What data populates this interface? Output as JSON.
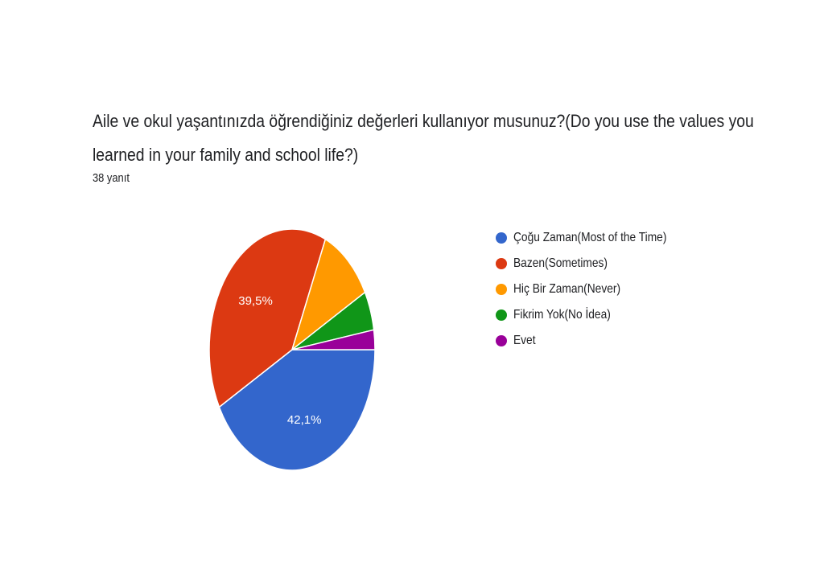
{
  "chart_data": {
    "type": "pie",
    "title": "Aile ve okul yaşantınızda öğrendiğiniz değerleri kullanıyor musunuz?(Do you use the values you learned in your family and school life?)",
    "title_lines": [
      "Aile ve okul yaşantınızda öğrendiğiniz değerleri kullanıyor musunuz?(Do you use the values you",
      "learned in your family and school life?)"
    ],
    "subtitle": "38 yanıt",
    "legend_position": "right",
    "slices": [
      {
        "label": "Çoğu Zaman(Most of the Time)",
        "count": 16,
        "percent": 42.1,
        "data_label": "42,1%",
        "color": "#3366cc"
      },
      {
        "label": "Bazen(Sometimes)",
        "count": 15,
        "percent": 39.5,
        "data_label": "39,5%",
        "color": "#dc3912"
      },
      {
        "label": "Hiç Bir Zaman(Never)",
        "count": 4,
        "percent": 10.5,
        "data_label": "",
        "color": "#ff9900"
      },
      {
        "label": "Fikrim Yok(No İdea)",
        "count": 2,
        "percent": 5.3,
        "data_label": "",
        "color": "#109618"
      },
      {
        "label": "Evet",
        "count": 1,
        "percent": 2.6,
        "data_label": "",
        "color": "#990099"
      }
    ]
  }
}
